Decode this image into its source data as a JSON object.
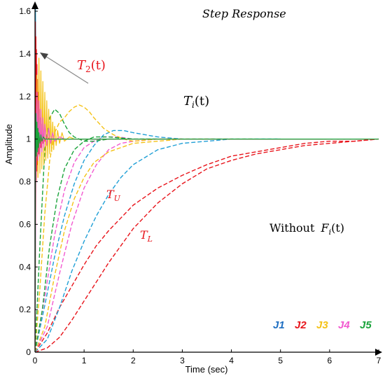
{
  "chart_data": {
    "type": "line",
    "title": "Step Response",
    "xlabel": "Time (sec)",
    "ylabel": "Amplitude",
    "xlim": [
      0,
      7
    ],
    "ylim": [
      0,
      1.65
    ],
    "xticks": [
      "0",
      "1",
      "2",
      "3",
      "4",
      "5",
      "6",
      "7"
    ],
    "yticks": [
      "0",
      "0.2",
      "0.4",
      "0.6",
      "0.8",
      "1",
      "1.2",
      "1.4",
      "1.6"
    ],
    "grid": false,
    "legend": {
      "placement": "bottom-right",
      "entries": [
        {
          "label": "J1",
          "color": "#1f6fc2"
        },
        {
          "label": "J2",
          "color": "#e8141b"
        },
        {
          "label": "J3",
          "color": "#f4c216"
        },
        {
          "label": "J4",
          "color": "#f25ad0"
        },
        {
          "label": "J5",
          "color": "#1aa33b"
        }
      ]
    },
    "annotations": {
      "t2": {
        "base": "T",
        "sub": "2",
        "tail": "(t)",
        "color": "#e8141b"
      },
      "ti": {
        "base": "T",
        "sub": "i",
        "tail": "(t)",
        "color": "#000000"
      },
      "tu": {
        "base": "T",
        "sub": "U",
        "color": "#e8141b"
      },
      "tl": {
        "base": "T",
        "sub": "L",
        "color": "#e8141b"
      },
      "without": {
        "prefix": "Without ",
        "base": "F",
        "sub": "i",
        "tail": "(t)",
        "color": "#000000"
      }
    },
    "series": [
      {
        "color": "#e8141b",
        "style": "dashed",
        "x": [
          0,
          0.25,
          0.5,
          0.75,
          1,
          1.25,
          1.5,
          1.75,
          2,
          2.5,
          3,
          3.5,
          4,
          4.5,
          5,
          5.5,
          6,
          6.5,
          7
        ],
        "y": [
          0,
          0.02,
          0.07,
          0.15,
          0.24,
          0.33,
          0.42,
          0.5,
          0.58,
          0.7,
          0.79,
          0.86,
          0.9,
          0.93,
          0.95,
          0.97,
          0.98,
          0.99,
          1.0
        ]
      },
      {
        "color": "#e8141b",
        "style": "dashed",
        "x": [
          0,
          0.25,
          0.5,
          0.75,
          1,
          1.25,
          1.5,
          1.75,
          2,
          2.5,
          3,
          3.5,
          4,
          4.5,
          5,
          5.5,
          6,
          6.5,
          7
        ],
        "y": [
          0,
          0.09,
          0.21,
          0.31,
          0.41,
          0.5,
          0.57,
          0.63,
          0.69,
          0.77,
          0.83,
          0.88,
          0.92,
          0.94,
          0.96,
          0.98,
          0.99,
          0.99,
          1.0
        ]
      },
      {
        "color": "#1f9fd6",
        "style": "dashed",
        "x": [
          0,
          0.25,
          0.5,
          0.75,
          1,
          1.25,
          1.5,
          1.75,
          2,
          2.5,
          3,
          3.5,
          4,
          4.5,
          5
        ],
        "y": [
          0,
          0.06,
          0.21,
          0.38,
          0.52,
          0.64,
          0.74,
          0.82,
          0.88,
          0.95,
          0.98,
          0.99,
          1.0,
          1.0,
          1.0
        ]
      },
      {
        "color": "#1f9fd6",
        "style": "dashed",
        "x": [
          0,
          0.2,
          0.4,
          0.6,
          0.8,
          1.0,
          1.2,
          1.4,
          1.6,
          1.8,
          2.0,
          2.5,
          3.0,
          4.0,
          5.0
        ],
        "y": [
          0,
          0.22,
          0.45,
          0.64,
          0.79,
          0.9,
          0.97,
          1.02,
          1.04,
          1.04,
          1.03,
          1.01,
          1.0,
          1.0,
          1.0
        ]
      },
      {
        "color": "#f25ad0",
        "style": "dashed",
        "x": [
          0,
          0.25,
          0.5,
          0.75,
          1,
          1.25,
          1.5,
          1.75,
          2,
          2.5,
          3,
          4
        ],
        "y": [
          0,
          0.12,
          0.37,
          0.6,
          0.77,
          0.88,
          0.95,
          0.98,
          0.99,
          1.0,
          1.0,
          1.0
        ]
      },
      {
        "color": "#f25ad0",
        "style": "dashed",
        "x": [
          0,
          0.2,
          0.4,
          0.6,
          0.8,
          1.0,
          1.2,
          1.4,
          1.7,
          2.0,
          2.5,
          3.0
        ],
        "y": [
          0,
          0.26,
          0.55,
          0.76,
          0.89,
          0.96,
          0.99,
          1.01,
          1.01,
          1.0,
          1.0,
          1.0
        ]
      },
      {
        "color": "#f4c216",
        "style": "dashed",
        "x": [
          0,
          0.2,
          0.4,
          0.6,
          0.8,
          1.0,
          1.2,
          1.5,
          2.0,
          2.5,
          3.0,
          3.5,
          4.0,
          4.5
        ],
        "y": [
          0,
          0.12,
          0.36,
          0.57,
          0.72,
          0.82,
          0.89,
          0.94,
          0.98,
          0.99,
          1.0,
          1.0,
          1.0,
          1.0
        ]
      },
      {
        "color": "#f4c216",
        "style": "dashed",
        "x": [
          0,
          0.1,
          0.2,
          0.3,
          0.4,
          0.5,
          0.6,
          0.7,
          0.8,
          0.9,
          1.0,
          1.1,
          1.2,
          1.4,
          1.6,
          1.8,
          2.0,
          2.5,
          3.0
        ],
        "y": [
          0,
          0.3,
          0.65,
          0.9,
          1.03,
          1.08,
          1.1,
          1.13,
          1.15,
          1.16,
          1.15,
          1.13,
          1.1,
          1.05,
          1.02,
          1.0,
          0.99,
          1.0,
          1.0
        ]
      },
      {
        "color": "#1aa33b",
        "style": "dashed",
        "x": [
          0,
          0.15,
          0.3,
          0.45,
          0.6,
          0.8,
          1.0,
          1.2,
          1.5,
          2.0,
          2.5
        ],
        "y": [
          0,
          0.2,
          0.5,
          0.72,
          0.86,
          0.95,
          0.99,
          1.01,
          1.01,
          1.0,
          1.0
        ]
      },
      {
        "color": "#1aa33b",
        "style": "dashed",
        "x": [
          0,
          0.1,
          0.2,
          0.3,
          0.4,
          0.5,
          0.6,
          0.7,
          0.8,
          1.0,
          1.2,
          1.5,
          2.0
        ],
        "y": [
          0,
          0.5,
          0.95,
          1.1,
          1.14,
          1.12,
          1.07,
          1.03,
          1.01,
          0.99,
          0.99,
          1.0,
          1.0
        ]
      },
      {
        "color": "#1f9fd6",
        "style": "solid",
        "x": [
          0,
          0.005,
          0.01,
          0.02,
          0.03,
          0.04,
          0.05,
          0.06,
          0.08,
          0.1,
          0.12,
          0.15,
          0.2,
          0.3,
          0.5,
          1.0,
          7.0
        ],
        "y": [
          0,
          1.2,
          1.62,
          1.3,
          0.85,
          1.25,
          0.92,
          1.12,
          0.95,
          1.06,
          0.98,
          1.02,
          1.0,
          1.0,
          1.0,
          1.0,
          1.0
        ]
      },
      {
        "color": "#e8141b",
        "style": "solid",
        "x": [
          0,
          0.004,
          0.008,
          0.012,
          0.016,
          0.02,
          0.025,
          0.03,
          0.035,
          0.04,
          0.045,
          0.05,
          0.055,
          0.06,
          0.065,
          0.07,
          0.08,
          0.09,
          0.1,
          0.11,
          0.12,
          0.13,
          0.14,
          0.15,
          0.16,
          0.18,
          0.2,
          0.25,
          0.3,
          0.5,
          1.0,
          7.0
        ],
        "y": [
          0,
          0.9,
          1.55,
          1.3,
          0.75,
          1.48,
          0.8,
          1.42,
          0.85,
          1.35,
          0.88,
          1.28,
          0.9,
          1.22,
          0.92,
          1.18,
          0.93,
          1.14,
          0.95,
          1.1,
          0.96,
          1.07,
          0.97,
          1.05,
          0.98,
          1.03,
          0.99,
          1.01,
          1.0,
          1.0,
          1.0,
          1.0
        ]
      },
      {
        "color": "#f4c216",
        "style": "solid",
        "x": [
          0,
          0.02,
          0.04,
          0.06,
          0.08,
          0.1,
          0.12,
          0.14,
          0.16,
          0.18,
          0.2,
          0.22,
          0.24,
          0.26,
          0.28,
          0.3,
          0.32,
          0.34,
          0.36,
          0.38,
          0.4,
          0.43,
          0.46,
          0.5,
          0.55,
          0.6,
          0.7,
          0.8,
          1.0,
          1.2,
          1.5,
          7.0
        ],
        "y": [
          0,
          0.85,
          1.3,
          0.82,
          1.38,
          0.84,
          1.32,
          0.86,
          1.27,
          0.88,
          1.22,
          0.9,
          1.18,
          0.91,
          1.14,
          0.93,
          1.11,
          0.94,
          1.08,
          0.95,
          1.06,
          0.97,
          1.04,
          0.98,
          1.03,
          0.99,
          1.01,
          1.0,
          1.0,
          1.0,
          1.0,
          1.0
        ]
      },
      {
        "color": "#f25ad0",
        "style": "solid",
        "x": [
          0,
          0.02,
          0.04,
          0.06,
          0.08,
          0.1,
          0.12,
          0.14,
          0.16,
          0.18,
          0.2,
          0.24,
          0.28,
          0.32,
          0.36,
          0.4,
          0.5,
          0.6,
          0.8,
          1.0,
          7.0
        ],
        "y": [
          0,
          0.9,
          1.22,
          0.9,
          1.18,
          0.92,
          1.14,
          0.94,
          1.1,
          0.96,
          1.07,
          0.97,
          1.05,
          0.98,
          1.03,
          0.99,
          1.01,
          1.0,
          1.0,
          1.0,
          1.0
        ]
      },
      {
        "color": "#1aa33b",
        "style": "solid",
        "x": [
          0,
          0.01,
          0.02,
          0.03,
          0.04,
          0.05,
          0.06,
          0.07,
          0.08,
          0.1,
          0.12,
          0.14,
          0.17,
          0.2,
          0.25,
          0.3,
          0.4,
          0.5,
          1.0,
          7.0
        ],
        "y": [
          0,
          0.95,
          1.12,
          0.92,
          1.08,
          0.94,
          1.05,
          0.96,
          1.03,
          0.98,
          1.02,
          0.99,
          1.01,
          1.0,
          1.0,
          1.0,
          1.0,
          1.0,
          1.0,
          1.0
        ]
      }
    ]
  }
}
